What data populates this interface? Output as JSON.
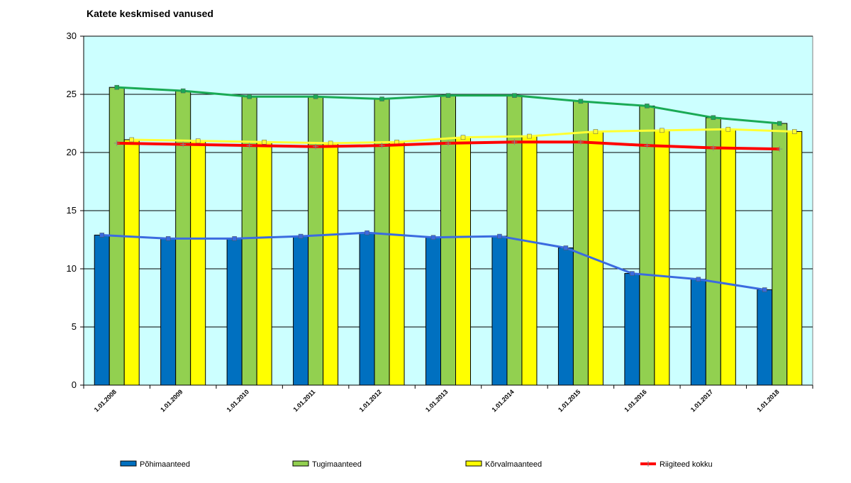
{
  "chart_data": {
    "type": "bar",
    "title": "Katete keskmised vanused",
    "xlabel": "",
    "ylabel": "",
    "ylim": [
      0,
      30
    ],
    "yticks": [
      0,
      5,
      10,
      15,
      20,
      25,
      30
    ],
    "grid": true,
    "legend_position": "bottom",
    "categories": [
      "1.01.2008",
      "1.01.2009",
      "1.01.2010",
      "1.01.2011",
      "1.01.2012",
      "1.01.2013",
      "1.01.2014",
      "1.01.2015",
      "1.01.2016",
      "1.01.2017",
      "1.01.2018"
    ],
    "series": [
      {
        "name": "Põhimaanteed",
        "kind": "bar",
        "color": "#0070C0",
        "values": [
          12.9,
          12.6,
          12.6,
          12.8,
          13.1,
          12.7,
          12.8,
          11.8,
          9.6,
          9.1,
          8.2
        ]
      },
      {
        "name": "Tugimaanteed",
        "kind": "bar",
        "color": "#92D050",
        "values": [
          25.6,
          25.3,
          24.8,
          24.8,
          24.6,
          24.9,
          24.9,
          24.4,
          24.0,
          23.0,
          22.5
        ]
      },
      {
        "name": "Kõrvalmaanteed",
        "kind": "bar",
        "color": "#FFFF00",
        "values": [
          21.1,
          21.0,
          20.9,
          20.8,
          20.9,
          21.3,
          21.4,
          21.8,
          21.9,
          22.0,
          21.8
        ]
      },
      {
        "name": "Riigiteed kokku",
        "kind": "line",
        "color": "#FF0000",
        "values": [
          20.8,
          20.7,
          20.6,
          20.5,
          20.6,
          20.8,
          20.9,
          20.9,
          20.6,
          20.4,
          20.3
        ]
      }
    ],
    "overlay_lines": [
      {
        "target": "Põhimaanteed",
        "color": "#3B6BE0",
        "values": [
          12.9,
          12.6,
          12.6,
          12.8,
          13.1,
          12.7,
          12.8,
          11.8,
          9.6,
          9.1,
          8.2
        ]
      },
      {
        "target": "Tugimaanteed",
        "color": "#1AAA55",
        "values": [
          25.6,
          25.3,
          24.8,
          24.8,
          24.6,
          24.9,
          24.9,
          24.4,
          24.0,
          23.0,
          22.5
        ]
      },
      {
        "target": "Kõrvalmaanteed",
        "color": "#FFFF33",
        "values": [
          21.1,
          21.0,
          20.9,
          20.8,
          20.9,
          21.3,
          21.4,
          21.8,
          21.9,
          22.0,
          21.8
        ]
      }
    ],
    "colors": {
      "plot_background": "#CCFFFF",
      "gridline": "#000000",
      "bar_outline": "#000000"
    }
  }
}
